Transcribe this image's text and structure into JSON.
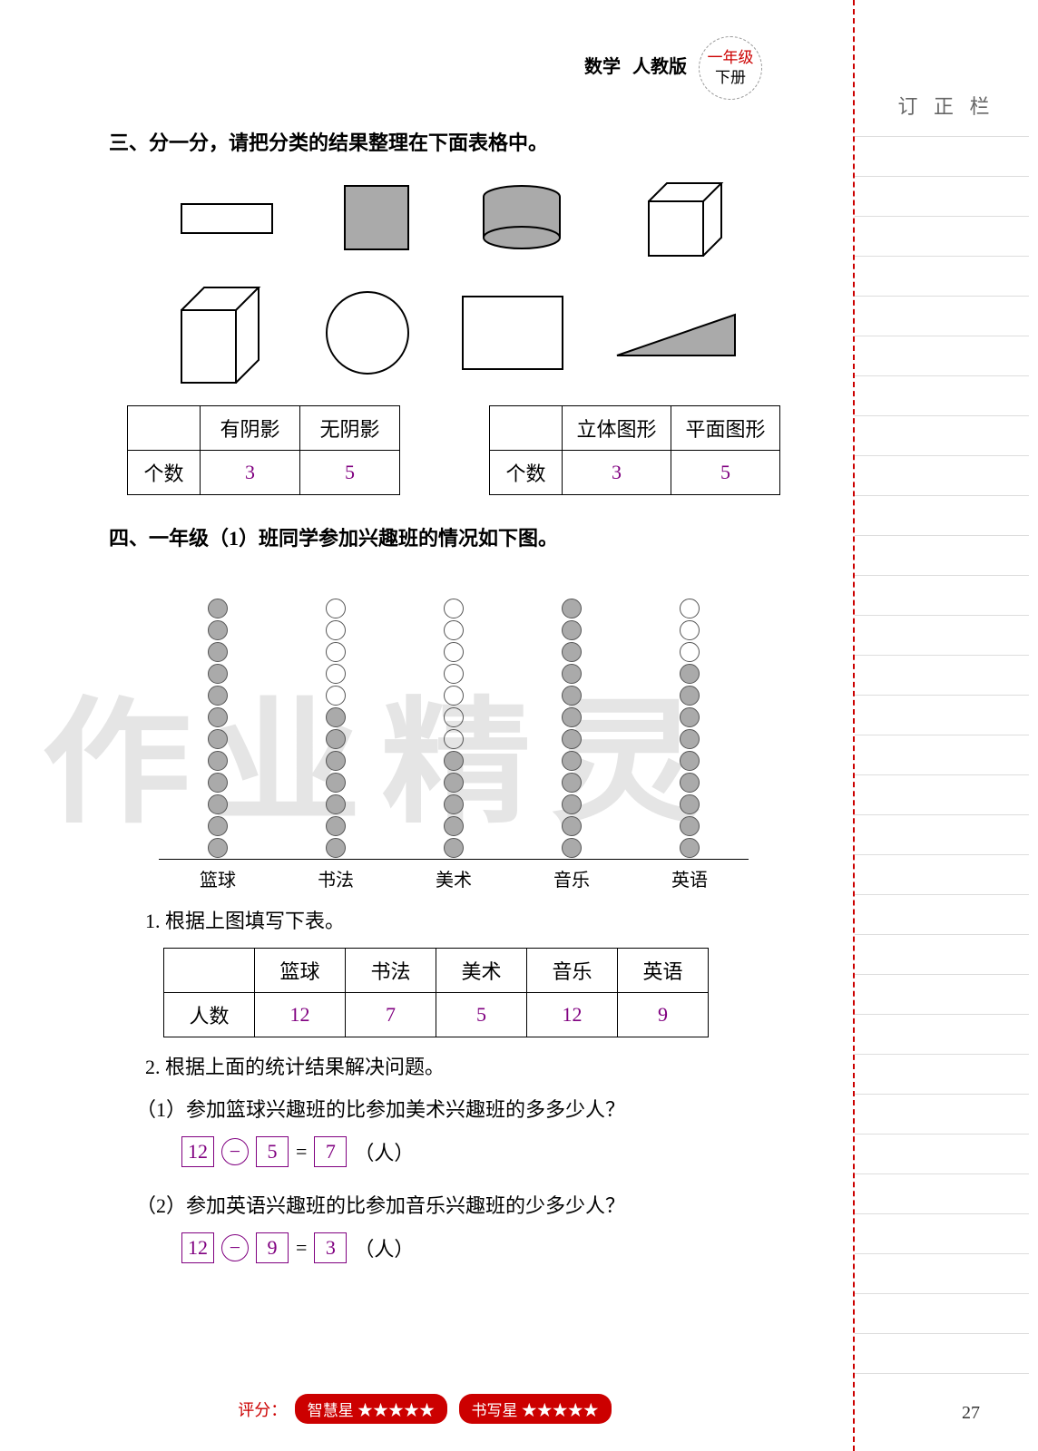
{
  "header": {
    "subject": "数学",
    "edition": "人教版",
    "grade": "一年级",
    "volume": "下册"
  },
  "sidebar": {
    "title": "订 正 栏",
    "line_count": 32,
    "line_start": 150,
    "line_gap": 44
  },
  "section3": {
    "title": "三、分一分，请把分类的结果整理在下面表格中。",
    "table1": {
      "h1": "有阴影",
      "h2": "无阴影",
      "rowlabel": "个数",
      "v1": "3",
      "v2": "5",
      "w": [
        "80",
        "110",
        "110"
      ]
    },
    "table2": {
      "h1": "立体图形",
      "h2": "平面图形",
      "rowlabel": "个数",
      "v1": "3",
      "v2": "5",
      "w": [
        "80",
        "120",
        "120"
      ]
    }
  },
  "section4": {
    "title": "四、一年级（1）班同学参加兴趣班的情况如下图。",
    "chart": {
      "categories": [
        "篮球",
        "书法",
        "美术",
        "音乐",
        "英语"
      ],
      "filled": [
        12,
        7,
        5,
        12,
        9
      ],
      "total": 12,
      "dot_filled_color": "#aaaaaa",
      "dot_empty_color": "#ffffff",
      "dot_border": "#555555"
    },
    "q1": "1. 根据上图填写下表。",
    "table": {
      "rowlabel": "人数",
      "headers": [
        "篮球",
        "书法",
        "美术",
        "音乐",
        "英语"
      ],
      "values": [
        "12",
        "7",
        "5",
        "12",
        "9"
      ],
      "colw": "100"
    },
    "q2": "2. 根据上面的统计结果解决问题。",
    "sub1": {
      "text": "（1）参加篮球兴趣班的比参加美术兴趣班的多多少人？",
      "a": "12",
      "op": "−",
      "b": "5",
      "r": "7",
      "unit": "（人）"
    },
    "sub2": {
      "text": "（2）参加英语兴趣班的比参加音乐兴趣班的少多少人？",
      "a": "12",
      "op": "−",
      "b": "9",
      "r": "3",
      "unit": "（人）"
    }
  },
  "footer": {
    "label": "评分：",
    "badge1": "智慧星",
    "badge2": "书写星",
    "stars": "★★★★★",
    "page": "27"
  },
  "watermark": "作业精灵"
}
